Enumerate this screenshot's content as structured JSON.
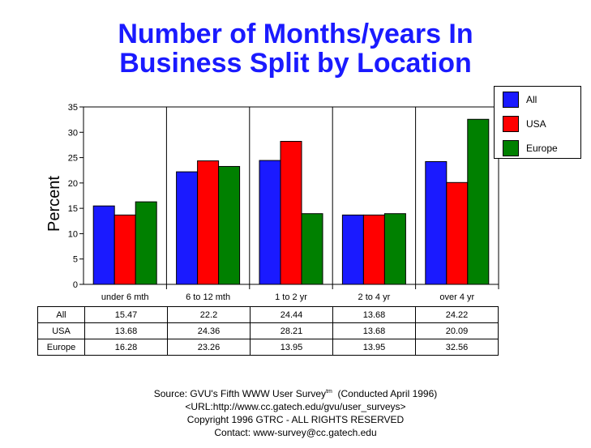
{
  "title": {
    "line1": "Number of Months/years In",
    "line2": "Business Split by Location"
  },
  "chart_data": {
    "type": "bar",
    "title": "Number of Months/years In Business Split by Location",
    "ylabel": "Percent",
    "xlabel": "",
    "ylim": [
      0,
      35
    ],
    "yticks": [
      "0",
      "5",
      "10",
      "15",
      "20",
      "25",
      "30",
      "35"
    ],
    "categories": [
      "under 6 mth",
      "6 to 12 mth",
      "1 to 2 yr",
      "2 to 4 yr",
      "over 4 yr"
    ],
    "series": [
      {
        "name": "All",
        "color": "#1a1aff",
        "values": [
          15.47,
          22.2,
          24.44,
          13.68,
          24.22
        ],
        "labels": [
          "15.47",
          "22.2",
          "24.44",
          "13.68",
          "24.22"
        ]
      },
      {
        "name": "USA",
        "color": "#ff0000",
        "values": [
          13.68,
          24.36,
          28.21,
          13.68,
          20.09
        ],
        "labels": [
          "13.68",
          "24.36",
          "28.21",
          "13.68",
          "20.09"
        ]
      },
      {
        "name": "Europe",
        "color": "#008000",
        "values": [
          16.28,
          23.26,
          13.95,
          13.95,
          32.56
        ],
        "labels": [
          "16.28",
          "23.26",
          "13.95",
          "13.95",
          "32.56"
        ]
      }
    ],
    "grid": "vertical separators between categories",
    "legend_placement": "top-right"
  },
  "footer": {
    "source": "Source: GVU's Fifth WWW User Survey",
    "tm": "tm",
    "conducted": "(Conducted April 1996)",
    "url": "<URL:http://www.cc.gatech.edu/gvu/user_surveys>",
    "copyright": "Copyright 1996 GTRC -  ALL RIGHTS RESERVED",
    "contact": "Contact: www-survey@cc.gatech.edu"
  }
}
